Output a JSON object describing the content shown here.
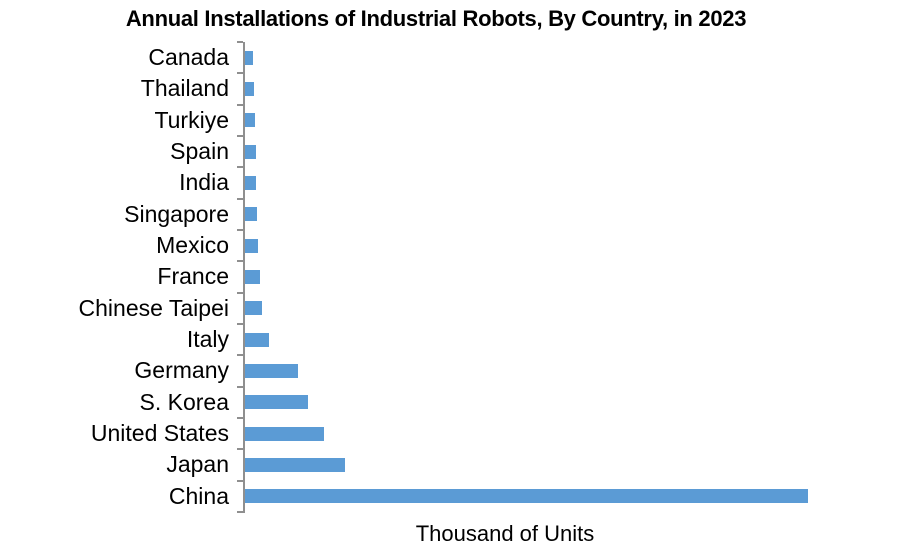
{
  "chart_data": {
    "type": "bar",
    "orientation": "horizontal",
    "title": "Annual Installations of Industrial Robots, By Country, in 2023",
    "xlabel": "Thousand of Units",
    "ylabel": "",
    "categories": [
      "Canada",
      "Thailand",
      "Turkiye",
      "Spain",
      "India",
      "Singapore",
      "Mexico",
      "France",
      "Chinese Taipei",
      "Italy",
      "Germany",
      "S. Korea",
      "United States",
      "Japan",
      "China"
    ],
    "values": [
      4.1,
      4.4,
      4.9,
      5.2,
      5.5,
      6.0,
      6.5,
      7.5,
      8.3,
      11.9,
      25.8,
      30.7,
      39.0,
      48.9,
      276.3
    ],
    "category_order": "top to bottom, ascending values",
    "xlim": [
      0,
      300
    ],
    "x_tick_labels": "none",
    "grid": false,
    "legend": false,
    "bar_color": "#5B9BD5",
    "axis_color": "#8f8f8f",
    "text_color": "#000000",
    "background_color": "#ffffff"
  }
}
